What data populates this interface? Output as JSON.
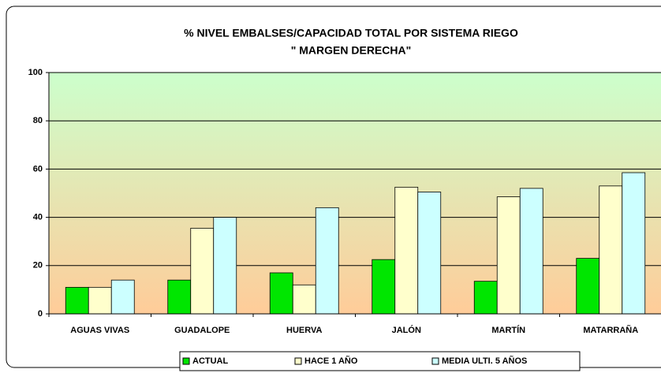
{
  "chart_data": {
    "type": "bar",
    "title": "% NIVEL EMBALSES/CAPACIDAD TOTAL POR SISTEMA  RIEGO",
    "subtitle": "\" MARGEN DERECHA\"",
    "categories": [
      "AGUAS VIVAS",
      "GUADALOPE",
      "HUERVA",
      "JALÓN",
      "MARTÍN",
      "MATARRAÑA"
    ],
    "series": [
      {
        "name": "ACTUAL",
        "color": "#00e600",
        "values": [
          11,
          14,
          17,
          22.5,
          13.5,
          23
        ]
      },
      {
        "name": "HACE 1 AÑO",
        "color": "#ffffcc",
        "values": [
          11,
          35.5,
          12,
          52.5,
          48.5,
          53
        ]
      },
      {
        "name": "MEDIA  ULTI. 5 AÑOS",
        "color": "#ccffff",
        "values": [
          14,
          40,
          44,
          50.5,
          52,
          58.5
        ]
      }
    ],
    "ylim": [
      0,
      100
    ],
    "yticks": [
      0,
      20,
      40,
      60,
      80,
      100
    ],
    "grid": true,
    "legend": "bottom"
  }
}
